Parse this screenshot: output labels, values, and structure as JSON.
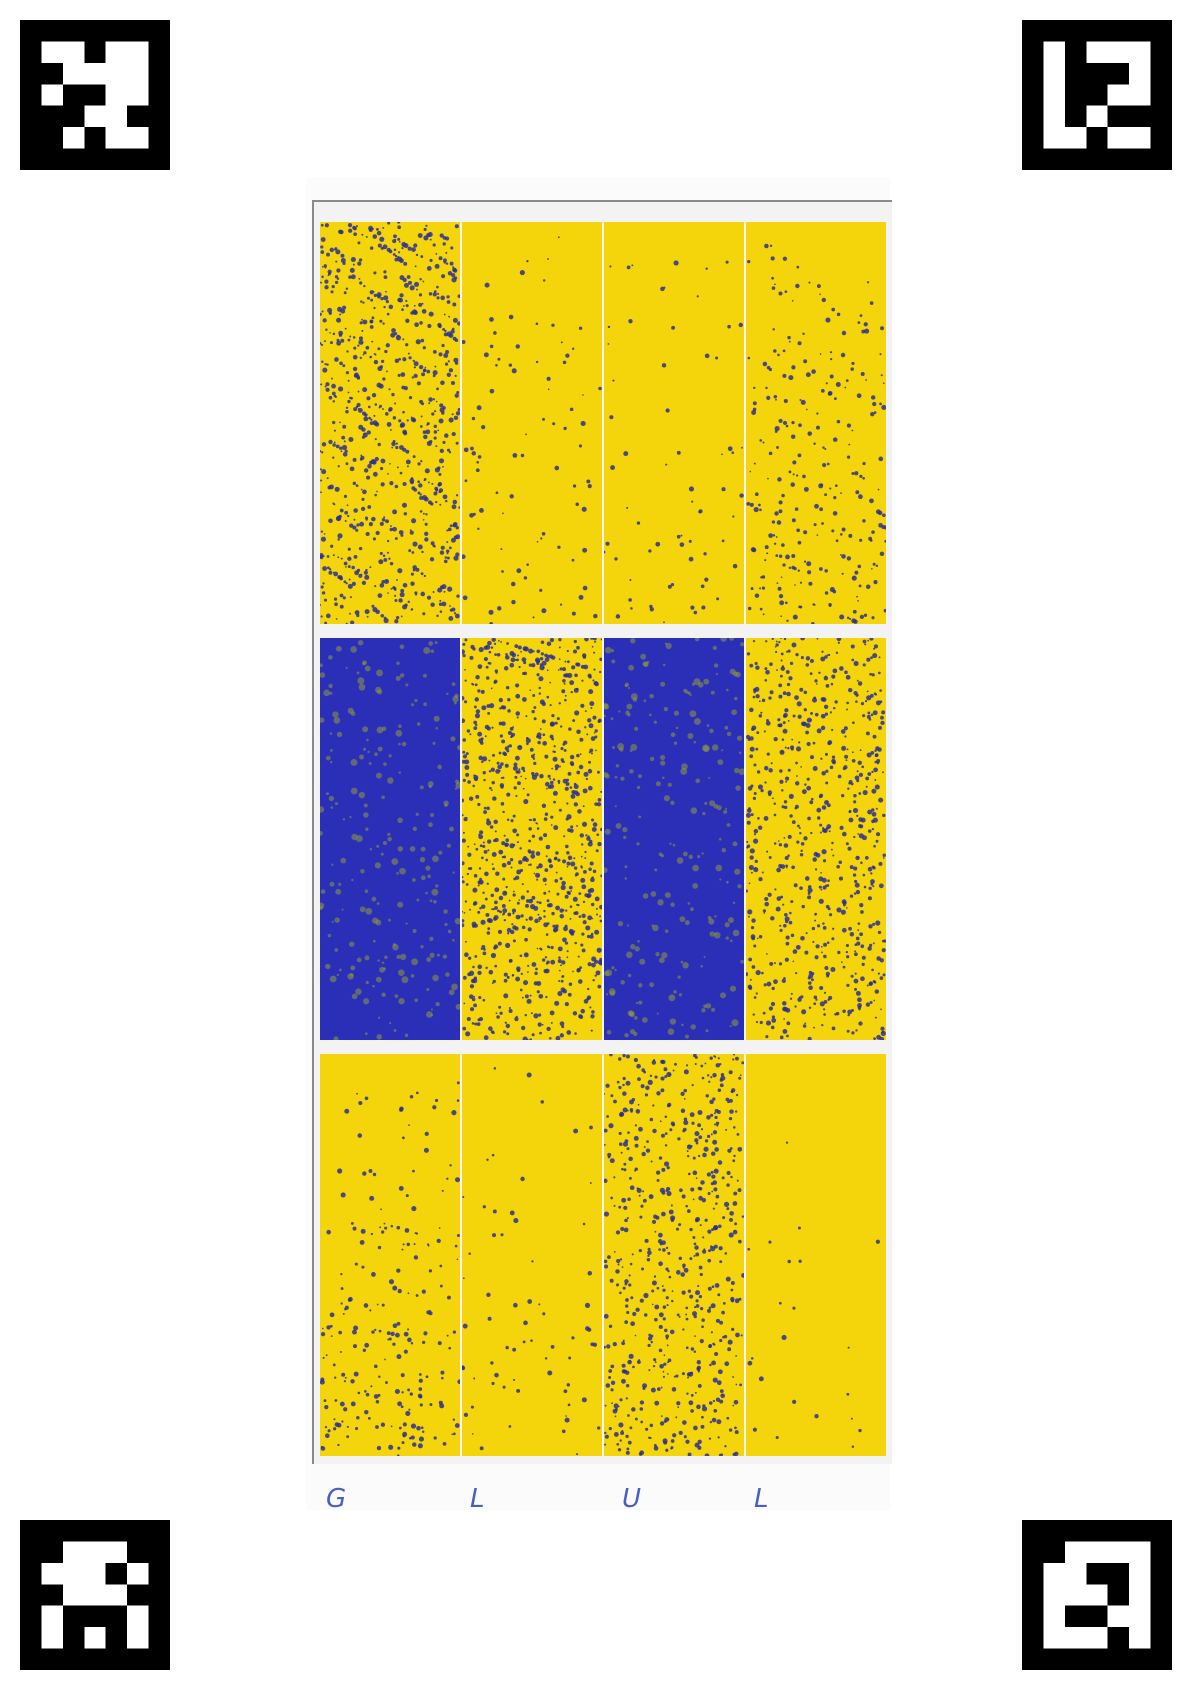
{
  "markers": [
    {
      "name": "fiducial-marker-top-left",
      "pattern": [
        "0000000",
        "0110110",
        "0011110",
        "0100110",
        "0001100",
        "0010110",
        "0000000"
      ]
    },
    {
      "name": "fiducial-marker-top-right",
      "pattern": [
        "0000000",
        "0101110",
        "0100010",
        "0100110",
        "0101000",
        "0110110",
        "0000000"
      ]
    },
    {
      "name": "fiducial-marker-bottom-left",
      "pattern": [
        "0000000",
        "0011100",
        "0111010",
        "0011100",
        "0100010",
        "0101010",
        "0000000"
      ]
    },
    {
      "name": "fiducial-marker-bottom-right",
      "pattern": [
        "0000000",
        "0011110",
        "0110010",
        "0111010",
        "0100110",
        "0111010",
        "0000000"
      ]
    }
  ],
  "colors": {
    "yellow": "#f4d40a",
    "blue": "#2b2fb8",
    "speckle": "#2a2f95"
  },
  "strips": [
    {
      "row": 0,
      "col": 0,
      "coverage": 0.35
    },
    {
      "row": 0,
      "col": 1,
      "coverage": 0.04
    },
    {
      "row": 0,
      "col": 2,
      "coverage": 0.03
    },
    {
      "row": 0,
      "col": 3,
      "coverage": 0.12
    },
    {
      "row": 1,
      "col": 0,
      "coverage": 0.9
    },
    {
      "row": 1,
      "col": 1,
      "coverage": 0.4
    },
    {
      "row": 1,
      "col": 2,
      "coverage": 0.88
    },
    {
      "row": 1,
      "col": 3,
      "coverage": 0.3
    },
    {
      "row": 2,
      "col": 0,
      "coverage": 0.1
    },
    {
      "row": 2,
      "col": 1,
      "coverage": 0.03
    },
    {
      "row": 2,
      "col": 2,
      "coverage": 0.28
    },
    {
      "row": 2,
      "col": 3,
      "coverage": 0.01
    }
  ],
  "handwritten_labels": [
    "G",
    "L",
    "U",
    "L"
  ]
}
